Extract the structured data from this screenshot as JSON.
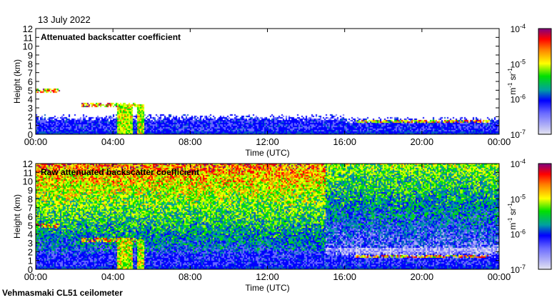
{
  "date": "13 July 2022",
  "footer": "Vehmasmaki CL51 ceilometer",
  "chart_data": [
    {
      "type": "heatmap",
      "title": "Attenuated backscatter coefficient",
      "xlabel": "Time (UTC)",
      "ylabel": "Height (km)",
      "xticks": [
        "00:00",
        "04:00",
        "08:00",
        "12:00",
        "16:00",
        "20:00",
        "00:00"
      ],
      "xlim_hours": [
        0,
        24
      ],
      "yticks": [
        "0",
        "1",
        "2",
        "3",
        "4",
        "5",
        "6",
        "7",
        "8",
        "9",
        "10",
        "11",
        "12"
      ],
      "ylim_km": [
        0,
        12
      ],
      "colorbar": {
        "label": "m-1 sr-1",
        "label_parts": [
          "m",
          "-1",
          " sr",
          "-1"
        ],
        "scale": "log",
        "range": [
          1e-07,
          0.0001
        ],
        "ticks": [
          {
            "base": "10",
            "exp": "-4"
          },
          {
            "base": "10",
            "exp": "-5"
          },
          {
            "base": "10",
            "exp": "-6"
          },
          {
            "base": "10",
            "exp": "-7"
          }
        ]
      },
      "features": {
        "boundary_layer_top_km": 2.0,
        "cloud_layers_km": [
          {
            "hours": [
              0,
              1.2
            ],
            "height": 5.0
          },
          {
            "hours": [
              2.3,
              5.2
            ],
            "height": 3.4
          },
          {
            "hours": [
              16.5,
              23.5
            ],
            "height": 1.5
          }
        ],
        "precipitation_hours": [
          4.4,
          4.8,
          5.4
        ]
      }
    },
    {
      "type": "heatmap",
      "title": "Raw attenuated backscatter coefficient",
      "xlabel": "Time (UTC)",
      "ylabel": "Height (km)",
      "xticks": [
        "00:00",
        "04:00",
        "08:00",
        "12:00",
        "16:00",
        "20:00",
        "00:00"
      ],
      "xlim_hours": [
        0,
        24
      ],
      "yticks": [
        "0",
        "1",
        "2",
        "3",
        "4",
        "5",
        "6",
        "7",
        "8",
        "9",
        "10",
        "11",
        "12"
      ],
      "ylim_km": [
        0,
        12
      ],
      "colorbar": {
        "label": "m-1 sr-1",
        "label_parts": [
          "m",
          "-1",
          " sr",
          "-1"
        ],
        "scale": "log",
        "range": [
          1e-07,
          0.0001
        ],
        "ticks": [
          {
            "base": "10",
            "exp": "-4"
          },
          {
            "base": "10",
            "exp": "-5"
          },
          {
            "base": "10",
            "exp": "-6"
          },
          {
            "base": "10",
            "exp": "-7"
          }
        ]
      }
    }
  ]
}
